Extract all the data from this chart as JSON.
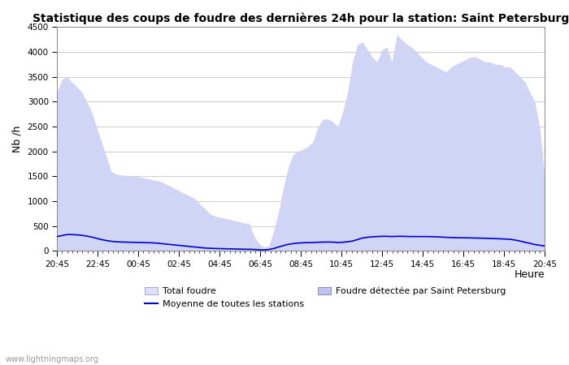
{
  "title": "Statistique des coups de foudre des dernières 24h pour la station: Saint Petersburg",
  "xlabel": "Heure",
  "ylabel": "Nb /h",
  "ylim": [
    0,
    4500
  ],
  "yticks": [
    0,
    500,
    1000,
    1500,
    2000,
    2500,
    3000,
    3500,
    4000,
    4500
  ],
  "xtick_labels": [
    "20:45",
    "22:45",
    "00:45",
    "02:45",
    "04:45",
    "06:45",
    "08:45",
    "10:45",
    "12:45",
    "14:45",
    "16:45",
    "18:45",
    "20:45"
  ],
  "bg_color": "#ffffff",
  "grid_color": "#cccccc",
  "area_color": "#d0d4f5",
  "line_color": "#0000cc",
  "watermark": "www.lightningmaps.org",
  "legend_label1": "Total foudre",
  "legend_label2": "Moyenne de toutes les stations",
  "legend_label3": "Foudre détectée par Saint Petersburg",
  "area_data": [
    3200,
    3450,
    3500,
    3400,
    3300,
    3200,
    3000,
    2800,
    2500,
    2200,
    1900,
    1600,
    1540,
    1530,
    1520,
    1510,
    1500,
    1480,
    1460,
    1440,
    1420,
    1400,
    1350,
    1300,
    1250,
    1200,
    1150,
    1100,
    1050,
    950,
    850,
    750,
    700,
    680,
    660,
    640,
    610,
    590,
    560,
    560,
    300,
    150,
    80,
    100,
    400,
    800,
    1300,
    1700,
    1950,
    2000,
    2050,
    2100,
    2200,
    2500,
    2650,
    2650,
    2600,
    2500,
    2800,
    3200,
    3800,
    4150,
    4200,
    4050,
    3900,
    3800,
    4050,
    4100,
    3800,
    4350,
    4250,
    4150,
    4100,
    4000,
    3900,
    3800,
    3750,
    3700,
    3650,
    3600,
    3700,
    3750,
    3800,
    3850,
    3900,
    3900,
    3850,
    3800,
    3800,
    3750,
    3750,
    3700,
    3700,
    3600,
    3500,
    3400,
    3200,
    3000,
    2500,
    1520
  ],
  "mean_data": [
    290,
    310,
    330,
    330,
    325,
    315,
    300,
    280,
    255,
    230,
    210,
    195,
    185,
    180,
    178,
    175,
    173,
    170,
    168,
    165,
    160,
    150,
    140,
    130,
    120,
    110,
    100,
    90,
    80,
    70,
    60,
    55,
    50,
    48,
    45,
    43,
    40,
    38,
    35,
    35,
    30,
    25,
    20,
    30,
    50,
    80,
    110,
    135,
    150,
    160,
    165,
    168,
    170,
    175,
    178,
    180,
    178,
    170,
    175,
    185,
    200,
    230,
    260,
    275,
    285,
    290,
    295,
    295,
    290,
    295,
    295,
    292,
    290,
    290,
    290,
    290,
    288,
    285,
    280,
    275,
    270,
    268,
    265,
    265,
    263,
    260,
    258,
    255,
    252,
    248,
    245,
    240,
    235,
    220,
    200,
    175,
    155,
    130,
    115,
    100
  ]
}
